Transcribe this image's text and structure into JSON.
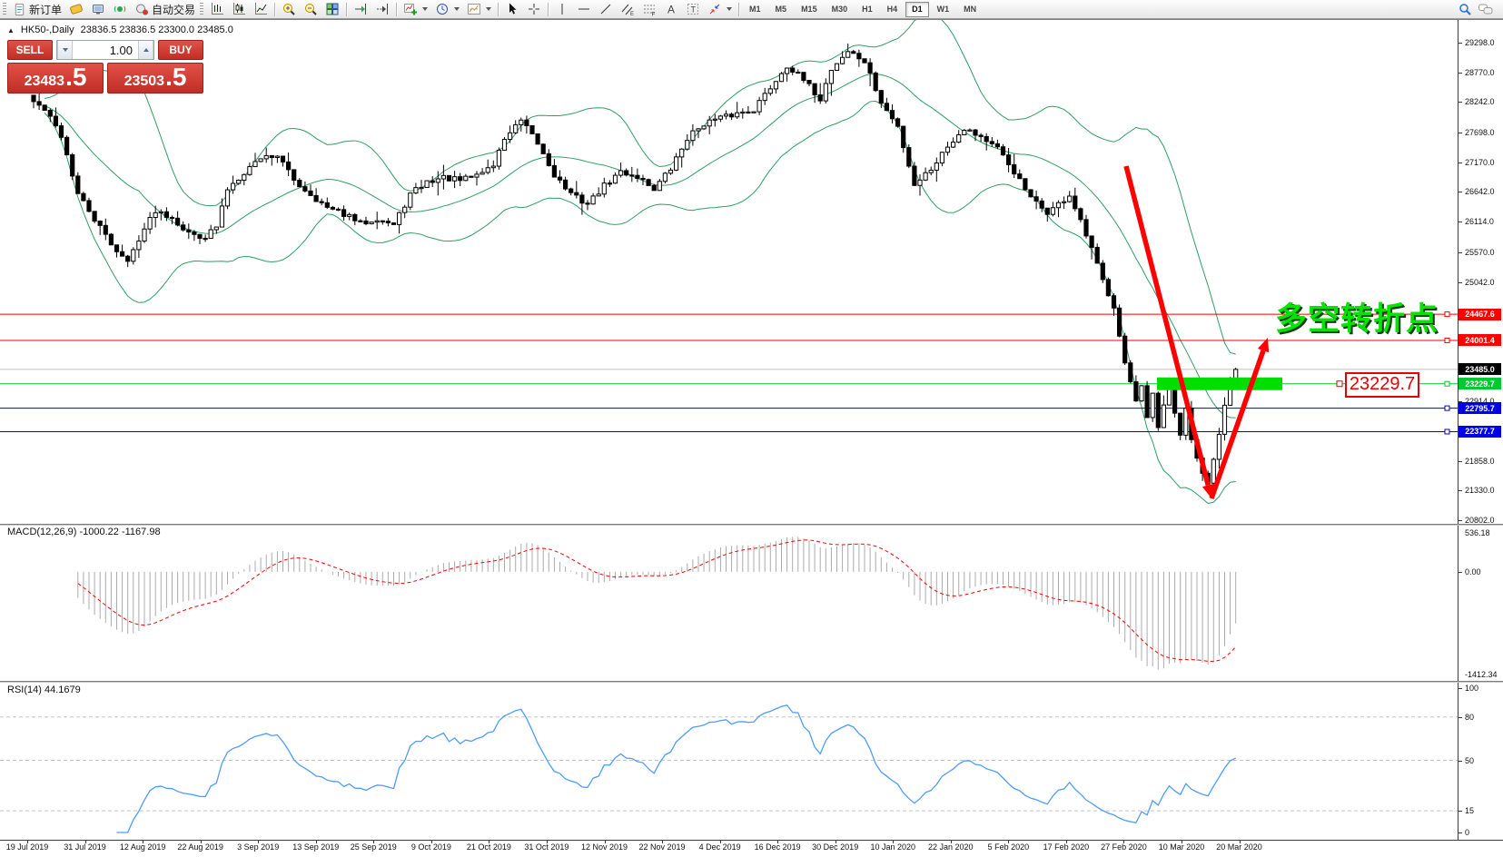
{
  "toolbar": {
    "new_order_label": "新订单",
    "auto_trading_label": "自动交易",
    "timeframes": [
      "M1",
      "M5",
      "M15",
      "M30",
      "H1",
      "H4",
      "D1",
      "W1",
      "MN"
    ],
    "active_timeframe": "D1"
  },
  "trade_panel": {
    "sell_label": "SELL",
    "buy_label": "BUY",
    "volume_value": "1.00",
    "sell_price_main": "23483",
    "sell_price_pips": ".5",
    "buy_price_main": "23503",
    "buy_price_pips": ".5"
  },
  "chart_header": {
    "collapse_glyph": "▲",
    "symbol_period": "HK50-,Daily",
    "ohlc_text": "23836.5 23836.5 23300.0 23485.0"
  },
  "indicator_labels": {
    "macd": "MACD(12,26,9) -1000.22 -1167.98",
    "rsi": "RSI(14) 44.1679"
  },
  "annotations": {
    "turning_point_text": "多空转折点",
    "price_callout_text": "23229.7"
  },
  "chart_data": {
    "type": "candlestick",
    "symbol": "HK50-",
    "period": "Daily",
    "current_ohlc": {
      "open": 23836.5,
      "high": 23836.5,
      "low": 23300.0,
      "close": 23485.0
    },
    "bid_price": 23483.5,
    "ask_price": 23503.5,
    "ylim": [
      20738,
      29702
    ],
    "y_axis_ticks": [
      29298.0,
      28770.0,
      28242.0,
      27698.0,
      27170.0,
      26642.0,
      26114.0,
      25570.0,
      25042.0,
      22914.0,
      21858.0,
      21330.0,
      20802.0
    ],
    "x_axis_dates": [
      "19 Jul 2019",
      "31 Jul 2019",
      "12 Aug 2019",
      "22 Aug 2019",
      "3 Sep 2019",
      "13 Sep 2019",
      "25 Sep 2019",
      "9 Oct 2019",
      "21 Oct 2019",
      "31 Oct 2019",
      "12 Nov 2019",
      "22 Nov 2019",
      "4 Dec 2019",
      "16 Dec 2019",
      "30 Dec 2019",
      "10 Jan 2020",
      "22 Jan 2020",
      "5 Feb 2020",
      "17 Feb 2020",
      "27 Feb 2020",
      "10 Mar 2020",
      "20 Mar 2020"
    ],
    "horizontal_levels": [
      {
        "value": 24467.6,
        "label": "24467.6",
        "line_color": "#ff0000",
        "chip_bg": "#ff0000",
        "chip_fg": "#ffffff",
        "handle": true
      },
      {
        "value": 24001.4,
        "label": "24001.4",
        "line_color": "#ff0000",
        "chip_bg": "#ff0000",
        "chip_fg": "#ffffff",
        "handle": true
      },
      {
        "value": 23485.0,
        "label": "23485.0",
        "line_color": "#c0c0c0",
        "chip_bg": "#000000",
        "chip_fg": "#ffffff",
        "handle": false
      },
      {
        "value": 23229.7,
        "label": "23229.7",
        "line_color": "#00c832",
        "chip_bg": "#00c832",
        "chip_fg": "#ffffff",
        "handle": true
      },
      {
        "value": 22795.7,
        "label": "22795.7",
        "line_color": "#0000d2",
        "chip_bg": "#0000e6",
        "chip_fg": "#ffffff",
        "handle": true
      },
      {
        "value": 22377.7,
        "label": "22377.7",
        "line_color": "#0000d2",
        "chip_bg": "#0000e6",
        "chip_fg": "#ffffff",
        "handle": true
      }
    ],
    "highlight_zone": {
      "price": 23229.7,
      "color": "#00dd00"
    },
    "bollinger_color": "#2f9e64",
    "candles": {
      "total": 218,
      "close_path": [
        [
          0,
          28250
        ],
        [
          2,
          28100
        ],
        [
          5,
          27650
        ],
        [
          8,
          26600
        ],
        [
          11,
          26150
        ],
        [
          14,
          25720
        ],
        [
          17,
          25390
        ],
        [
          19,
          25820
        ],
        [
          22,
          26320
        ],
        [
          25,
          26200
        ],
        [
          28,
          25900
        ],
        [
          31,
          25850
        ],
        [
          33,
          26020
        ],
        [
          35,
          26700
        ],
        [
          38,
          27000
        ],
        [
          41,
          27260
        ],
        [
          44,
          27300
        ],
        [
          47,
          26850
        ],
        [
          50,
          26600
        ],
        [
          53,
          26350
        ],
        [
          56,
          26250
        ],
        [
          59,
          26080
        ],
        [
          62,
          26180
        ],
        [
          65,
          26050
        ],
        [
          68,
          26600
        ],
        [
          71,
          26820
        ],
        [
          74,
          26900
        ],
        [
          77,
          26840
        ],
        [
          80,
          26950
        ],
        [
          83,
          27120
        ],
        [
          85,
          27600
        ],
        [
          88,
          27900
        ],
        [
          91,
          27500
        ],
        [
          94,
          26950
        ],
        [
          97,
          26600
        ],
        [
          100,
          26430
        ],
        [
          103,
          26750
        ],
        [
          106,
          27000
        ],
        [
          109,
          26920
        ],
        [
          112,
          26700
        ],
        [
          115,
          27050
        ],
        [
          118,
          27600
        ],
        [
          121,
          27870
        ],
        [
          124,
          27950
        ],
        [
          127,
          28040
        ],
        [
          130,
          28120
        ],
        [
          133,
          28500
        ],
        [
          136,
          28900
        ],
        [
          139,
          28620
        ],
        [
          142,
          28300
        ],
        [
          144,
          28830
        ],
        [
          147,
          29150
        ],
        [
          150,
          28960
        ],
        [
          153,
          28220
        ],
        [
          156,
          27800
        ],
        [
          159,
          26780
        ],
        [
          162,
          27060
        ],
        [
          165,
          27460
        ],
        [
          168,
          27790
        ],
        [
          171,
          27630
        ],
        [
          174,
          27400
        ],
        [
          177,
          27000
        ],
        [
          180,
          26520
        ],
        [
          183,
          26280
        ],
        [
          185,
          26420
        ],
        [
          187,
          26580
        ],
        [
          189,
          26100
        ],
        [
          191,
          25620
        ],
        [
          193,
          25060
        ],
        [
          195,
          24620
        ],
        [
          197,
          23600
        ],
        [
          199,
          22900
        ],
        [
          200,
          23150
        ],
        [
          201,
          22600
        ],
        [
          202,
          23050
        ],
        [
          203,
          22420
        ],
        [
          204,
          22820
        ],
        [
          205,
          23180
        ],
        [
          206,
          22720
        ],
        [
          207,
          22320
        ],
        [
          208,
          22760
        ],
        [
          209,
          22220
        ],
        [
          210,
          21920
        ],
        [
          211,
          21600
        ],
        [
          212,
          21450
        ],
        [
          213,
          21900
        ],
        [
          214,
          22300
        ],
        [
          215,
          22880
        ],
        [
          216,
          23320
        ],
        [
          217,
          23485
        ]
      ]
    },
    "macd": {
      "params": "12,26,9",
      "value": -1000.22,
      "signal_value": -1167.98,
      "scale_top": "536.18",
      "scale_zero": "0.00",
      "scale_bottom": "-1412.34",
      "histogram_color": "#ababab",
      "signal_color": "#ff0000"
    },
    "rsi": {
      "period": 14,
      "value": 44.1679,
      "scale": [
        100,
        80,
        50,
        15,
        0
      ],
      "dashed_levels": [
        80,
        50,
        15
      ],
      "line_color": "#4f9bff"
    }
  }
}
